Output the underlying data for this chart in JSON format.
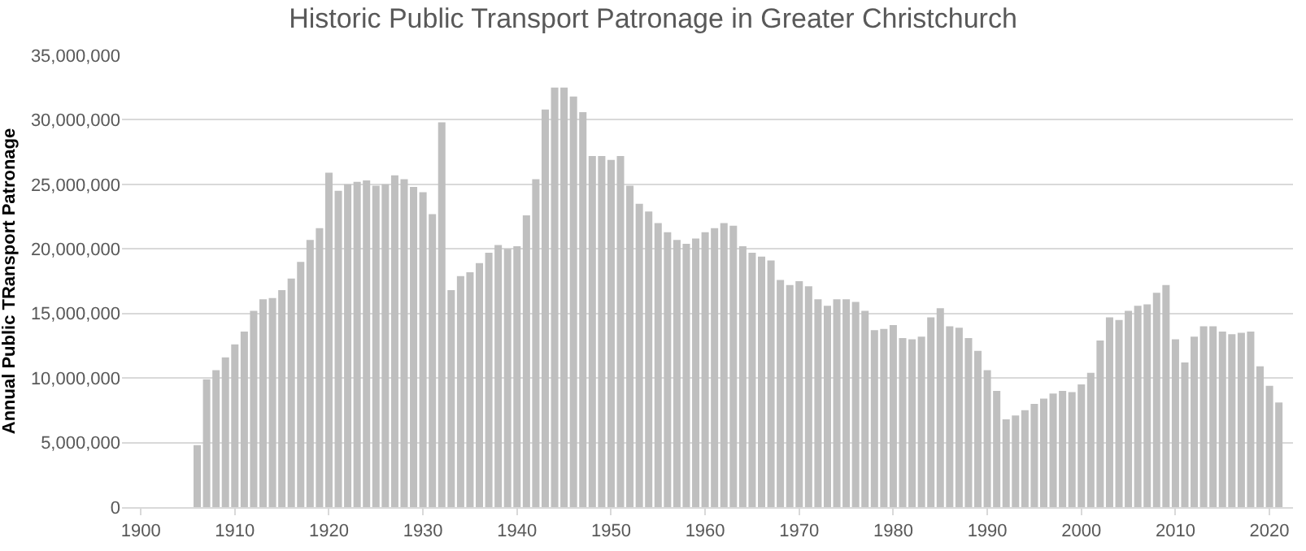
{
  "chart_data": {
    "type": "bar",
    "title": "Historic Public Transport Patronage in Greater Christchurch",
    "ylabel": "Annual Public TRansport Patronage",
    "x": [
      1906,
      1907,
      1908,
      1909,
      1910,
      1911,
      1912,
      1913,
      1914,
      1915,
      1916,
      1917,
      1918,
      1919,
      1920,
      1921,
      1922,
      1923,
      1924,
      1925,
      1926,
      1927,
      1928,
      1929,
      1930,
      1931,
      1932,
      1933,
      1934,
      1935,
      1936,
      1937,
      1938,
      1939,
      1940,
      1941,
      1942,
      1943,
      1944,
      1945,
      1946,
      1947,
      1948,
      1949,
      1950,
      1951,
      1952,
      1953,
      1954,
      1955,
      1956,
      1957,
      1958,
      1959,
      1960,
      1961,
      1962,
      1963,
      1964,
      1965,
      1966,
      1967,
      1968,
      1969,
      1970,
      1971,
      1972,
      1973,
      1974,
      1975,
      1976,
      1977,
      1978,
      1979,
      1980,
      1981,
      1982,
      1983,
      1984,
      1985,
      1986,
      1987,
      1988,
      1989,
      1990,
      1991,
      1992,
      1993,
      1994,
      1995,
      1996,
      1997,
      1998,
      1999,
      2000,
      2001,
      2002,
      2003,
      2004,
      2005,
      2006,
      2007,
      2008,
      2009,
      2010,
      2011,
      2012,
      2013,
      2014,
      2015,
      2016,
      2017,
      2018,
      2019,
      2020,
      2021
    ],
    "values": [
      4800000,
      9900000,
      10600000,
      11600000,
      12600000,
      13600000,
      15200000,
      16100000,
      16200000,
      16800000,
      17700000,
      19000000,
      20700000,
      21600000,
      25900000,
      24500000,
      25000000,
      25200000,
      25300000,
      24900000,
      25000000,
      25700000,
      25400000,
      24800000,
      24400000,
      22700000,
      29800000,
      16800000,
      17900000,
      18200000,
      18900000,
      19700000,
      20300000,
      20000000,
      20200000,
      22600000,
      25400000,
      30800000,
      32500000,
      32500000,
      31800000,
      30600000,
      27200000,
      27200000,
      26900000,
      27200000,
      24900000,
      23500000,
      22900000,
      22000000,
      21300000,
      20700000,
      20400000,
      20800000,
      21300000,
      21600000,
      22000000,
      21800000,
      20200000,
      19700000,
      19400000,
      19100000,
      17600000,
      17200000,
      17500000,
      17100000,
      16100000,
      15600000,
      16100000,
      16100000,
      15900000,
      15200000,
      13700000,
      13800000,
      14100000,
      13100000,
      13000000,
      13200000,
      14700000,
      15400000,
      14000000,
      13900000,
      13100000,
      12100000,
      10600000,
      9000000,
      6800000,
      7100000,
      7500000,
      8000000,
      8400000,
      8800000,
      9000000,
      8900000,
      9500000,
      10400000,
      12900000,
      14700000,
      14500000,
      15200000,
      15600000,
      15700000,
      16600000,
      17200000,
      13000000,
      11200000,
      13200000,
      14000000,
      14000000,
      13600000,
      13400000,
      13500000,
      13600000,
      10900000,
      9400000,
      8100000
    ],
    "color": "#bfbfbf",
    "xlim": [
      1898,
      2022.5
    ],
    "xticks": [
      1900,
      1910,
      1920,
      1930,
      1940,
      1950,
      1960,
      1970,
      1980,
      1990,
      2000,
      2010,
      2020
    ],
    "ylim": [
      0,
      35000000
    ],
    "yticks": [
      {
        "value": 0,
        "label": "0"
      },
      {
        "value": 5000000,
        "label": "5,000,000"
      },
      {
        "value": 10000000,
        "label": "10,000,000"
      },
      {
        "value": 15000000,
        "label": "15,000,000"
      },
      {
        "value": 20000000,
        "label": "20,000,000"
      },
      {
        "value": 25000000,
        "label": "25,000,000"
      },
      {
        "value": 30000000,
        "label": "30,000,000"
      },
      {
        "value": 35000000,
        "label": "35,000,000"
      }
    ],
    "grid": "y"
  }
}
